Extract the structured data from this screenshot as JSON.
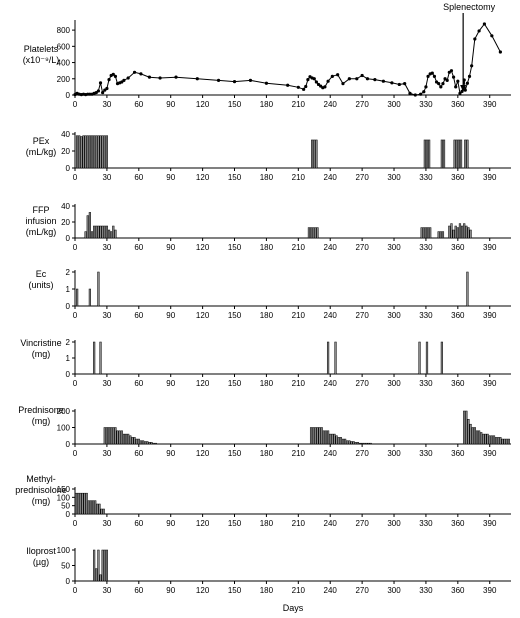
{
  "figure": {
    "xlabel": "Days",
    "annotation": "Splenectomy"
  },
  "chart_data": [
    {
      "type": "line",
      "label": [
        "Platelets",
        "(x10⁻⁹/L)"
      ],
      "ylim": [
        0,
        900
      ],
      "yticks": [
        0,
        200,
        400,
        600,
        800
      ],
      "xlim": [
        0,
        410
      ],
      "xticks": [
        0,
        30,
        60,
        90,
        120,
        150,
        180,
        210,
        240,
        270,
        300,
        330,
        360,
        390
      ],
      "annotation": {
        "text": "Splenectomy",
        "x": 365
      },
      "series": [
        {
          "x": [
            0,
            2,
            4,
            6,
            8,
            10,
            12,
            14,
            16,
            18,
            20,
            22,
            24,
            26,
            28,
            30,
            32,
            34,
            36,
            38,
            40,
            42,
            44,
            46,
            50,
            56,
            62,
            70,
            80,
            95,
            115,
            135,
            150,
            165,
            180,
            200,
            210,
            215,
            217,
            219,
            221,
            223,
            225,
            227,
            229,
            231,
            233,
            235,
            238,
            242,
            247,
            252,
            258,
            265,
            270,
            275,
            282,
            290,
            298,
            305,
            310,
            315,
            320,
            325,
            328,
            330,
            332,
            334,
            336,
            338,
            340,
            342,
            344,
            346,
            348,
            350,
            352,
            354,
            356,
            358,
            360,
            362,
            364,
            366,
            367,
            369,
            371,
            373,
            376,
            380,
            385,
            392,
            400
          ],
          "y": [
            5,
            20,
            10,
            5,
            10,
            5,
            10,
            10,
            10,
            20,
            30,
            50,
            150,
            30,
            60,
            80,
            190,
            240,
            255,
            230,
            140,
            150,
            160,
            180,
            210,
            280,
            260,
            220,
            210,
            220,
            200,
            180,
            165,
            180,
            145,
            120,
            95,
            70,
            105,
            190,
            225,
            210,
            200,
            160,
            130,
            110,
            90,
            100,
            170,
            230,
            250,
            140,
            200,
            200,
            240,
            200,
            190,
            170,
            150,
            130,
            140,
            20,
            0,
            10,
            40,
            100,
            230,
            260,
            270,
            230,
            160,
            140,
            100,
            140,
            200,
            180,
            280,
            300,
            220,
            100,
            170,
            20,
            45,
            185,
            60,
            145,
            230,
            360,
            690,
            790,
            875,
            730,
            530
          ]
        }
      ]
    },
    {
      "type": "bar",
      "label": [
        "PEx",
        "(mL/kg)"
      ],
      "ylim": [
        0,
        40
      ],
      "yticks": [
        0,
        20,
        40
      ],
      "xlim": [
        0,
        410
      ],
      "xticks": [
        0,
        30,
        60,
        90,
        120,
        150,
        180,
        210,
        240,
        270,
        300,
        330,
        360,
        390
      ],
      "bars": [
        [
          2,
          38
        ],
        [
          4,
          38
        ],
        [
          6,
          37
        ],
        [
          8,
          38
        ],
        [
          10,
          38
        ],
        [
          12,
          38
        ],
        [
          14,
          38
        ],
        [
          16,
          38
        ],
        [
          18,
          38
        ],
        [
          20,
          38
        ],
        [
          22,
          38
        ],
        [
          24,
          38
        ],
        [
          26,
          38
        ],
        [
          28,
          38
        ],
        [
          30,
          38
        ],
        [
          223,
          33
        ],
        [
          225,
          33
        ],
        [
          227,
          33
        ],
        [
          329,
          33
        ],
        [
          331,
          33
        ],
        [
          333,
          33
        ],
        [
          345,
          33
        ],
        [
          347,
          33
        ],
        [
          357,
          33
        ],
        [
          359,
          33
        ],
        [
          361,
          33
        ],
        [
          363,
          33
        ],
        [
          367,
          33
        ],
        [
          369,
          33
        ]
      ]
    },
    {
      "type": "bar",
      "label": [
        "FFP",
        "infusion",
        "(mL/kg)"
      ],
      "ylim": [
        0,
        40
      ],
      "yticks": [
        0,
        20,
        40
      ],
      "xlim": [
        0,
        410
      ],
      "xticks": [
        0,
        30,
        60,
        90,
        120,
        150,
        180,
        210,
        240,
        270,
        300,
        330,
        360,
        390
      ],
      "bars": [
        [
          10,
          8
        ],
        [
          12,
          28
        ],
        [
          14,
          32
        ],
        [
          16,
          8
        ],
        [
          18,
          15
        ],
        [
          20,
          15
        ],
        [
          22,
          15
        ],
        [
          24,
          15
        ],
        [
          26,
          15
        ],
        [
          28,
          15
        ],
        [
          30,
          15
        ],
        [
          32,
          10
        ],
        [
          34,
          8
        ],
        [
          36,
          15
        ],
        [
          38,
          10
        ],
        [
          220,
          13
        ],
        [
          222,
          13
        ],
        [
          224,
          13
        ],
        [
          226,
          13
        ],
        [
          228,
          13
        ],
        [
          326,
          13
        ],
        [
          328,
          13
        ],
        [
          330,
          13
        ],
        [
          332,
          13
        ],
        [
          334,
          13
        ],
        [
          342,
          8
        ],
        [
          344,
          8
        ],
        [
          346,
          8
        ],
        [
          352,
          15
        ],
        [
          354,
          18
        ],
        [
          356,
          10
        ],
        [
          358,
          15
        ],
        [
          360,
          13
        ],
        [
          362,
          18
        ],
        [
          364,
          15
        ],
        [
          366,
          18
        ],
        [
          368,
          15
        ],
        [
          370,
          13
        ],
        [
          372,
          10
        ]
      ]
    },
    {
      "type": "bar",
      "label": [
        "Ec",
        "(units)"
      ],
      "ylim": [
        0,
        2
      ],
      "yticks": [
        0,
        1,
        2
      ],
      "xlim": [
        0,
        410
      ],
      "xticks": [
        0,
        30,
        60,
        90,
        120,
        150,
        180,
        210,
        240,
        270,
        300,
        330,
        360,
        390
      ],
      "bars": [
        [
          2,
          1
        ],
        [
          14,
          1
        ],
        [
          22,
          2
        ],
        [
          369,
          2
        ]
      ]
    },
    {
      "type": "bar",
      "label": [
        "Vincristine",
        "(mg)"
      ],
      "ylim": [
        0,
        2
      ],
      "yticks": [
        0,
        1,
        2
      ],
      "xlim": [
        0,
        410
      ],
      "xticks": [
        0,
        30,
        60,
        90,
        120,
        150,
        180,
        210,
        240,
        270,
        300,
        330,
        360,
        390
      ],
      "bars": [
        [
          18,
          2
        ],
        [
          24,
          2
        ],
        [
          238,
          2
        ],
        [
          245,
          2
        ],
        [
          324,
          2
        ],
        [
          331,
          2
        ],
        [
          345,
          2
        ]
      ]
    },
    {
      "type": "bar",
      "label": [
        "Prednisone",
        "(mg)"
      ],
      "ylim": [
        0,
        200
      ],
      "yticks": [
        0,
        100,
        200
      ],
      "xlim": [
        0,
        410
      ],
      "xticks": [
        0,
        30,
        60,
        90,
        120,
        150,
        180,
        210,
        240,
        270,
        300,
        330,
        360,
        390
      ],
      "bars": [
        [
          28,
          100
        ],
        [
          30,
          100
        ],
        [
          32,
          100
        ],
        [
          34,
          100
        ],
        [
          36,
          100
        ],
        [
          38,
          100
        ],
        [
          40,
          80
        ],
        [
          42,
          80
        ],
        [
          44,
          80
        ],
        [
          46,
          60
        ],
        [
          48,
          60
        ],
        [
          50,
          60
        ],
        [
          52,
          50
        ],
        [
          54,
          40
        ],
        [
          56,
          40
        ],
        [
          58,
          30
        ],
        [
          60,
          30
        ],
        [
          62,
          20
        ],
        [
          64,
          20
        ],
        [
          66,
          15
        ],
        [
          68,
          15
        ],
        [
          70,
          10
        ],
        [
          72,
          10
        ],
        [
          74,
          5
        ],
        [
          76,
          5
        ],
        [
          222,
          100
        ],
        [
          224,
          100
        ],
        [
          226,
          100
        ],
        [
          228,
          100
        ],
        [
          230,
          100
        ],
        [
          232,
          100
        ],
        [
          234,
          80
        ],
        [
          236,
          80
        ],
        [
          238,
          80
        ],
        [
          240,
          60
        ],
        [
          242,
          60
        ],
        [
          244,
          60
        ],
        [
          246,
          50
        ],
        [
          248,
          40
        ],
        [
          250,
          40
        ],
        [
          252,
          30
        ],
        [
          254,
          30
        ],
        [
          256,
          20
        ],
        [
          258,
          20
        ],
        [
          260,
          15
        ],
        [
          262,
          15
        ],
        [
          264,
          10
        ],
        [
          266,
          10
        ],
        [
          268,
          5
        ],
        [
          270,
          5
        ],
        [
          272,
          5
        ],
        [
          274,
          5
        ],
        [
          276,
          5
        ],
        [
          278,
          5
        ],
        [
          366,
          200
        ],
        [
          368,
          200
        ],
        [
          370,
          150
        ],
        [
          372,
          120
        ],
        [
          374,
          100
        ],
        [
          376,
          100
        ],
        [
          378,
          80
        ],
        [
          380,
          80
        ],
        [
          382,
          70
        ],
        [
          384,
          60
        ],
        [
          386,
          60
        ],
        [
          388,
          60
        ],
        [
          390,
          50
        ],
        [
          392,
          50
        ],
        [
          394,
          50
        ],
        [
          396,
          40
        ],
        [
          398,
          40
        ],
        [
          400,
          40
        ],
        [
          402,
          30
        ],
        [
          404,
          30
        ],
        [
          406,
          30
        ],
        [
          408,
          30
        ]
      ]
    },
    {
      "type": "bar",
      "label": [
        "Methyl-",
        "prednisolone",
        "(mg)"
      ],
      "ylim": [
        0,
        150
      ],
      "yticks": [
        0,
        50,
        100,
        150
      ],
      "xlim": [
        0,
        410
      ],
      "xticks": [
        0,
        30,
        60,
        90,
        120,
        150,
        180,
        210,
        240,
        270,
        300,
        330,
        360,
        390
      ],
      "bars": [
        [
          1,
          125
        ],
        [
          3,
          125
        ],
        [
          5,
          125
        ],
        [
          7,
          125
        ],
        [
          9,
          125
        ],
        [
          11,
          125
        ],
        [
          13,
          80
        ],
        [
          15,
          80
        ],
        [
          17,
          80
        ],
        [
          19,
          80
        ],
        [
          21,
          60
        ],
        [
          23,
          60
        ],
        [
          25,
          30
        ],
        [
          27,
          30
        ]
      ]
    },
    {
      "type": "bar",
      "label": [
        "Iloprost",
        "(µg)"
      ],
      "ylim": [
        0,
        100
      ],
      "yticks": [
        0,
        50,
        100
      ],
      "xlim": [
        0,
        410
      ],
      "xticks": [
        0,
        30,
        60,
        90,
        120,
        150,
        180,
        210,
        240,
        270,
        300,
        330,
        360,
        390
      ],
      "bars": [
        [
          18,
          100
        ],
        [
          20,
          40
        ],
        [
          22,
          100
        ],
        [
          24,
          20
        ],
        [
          26,
          100
        ],
        [
          28,
          100
        ],
        [
          30,
          100
        ]
      ]
    }
  ]
}
